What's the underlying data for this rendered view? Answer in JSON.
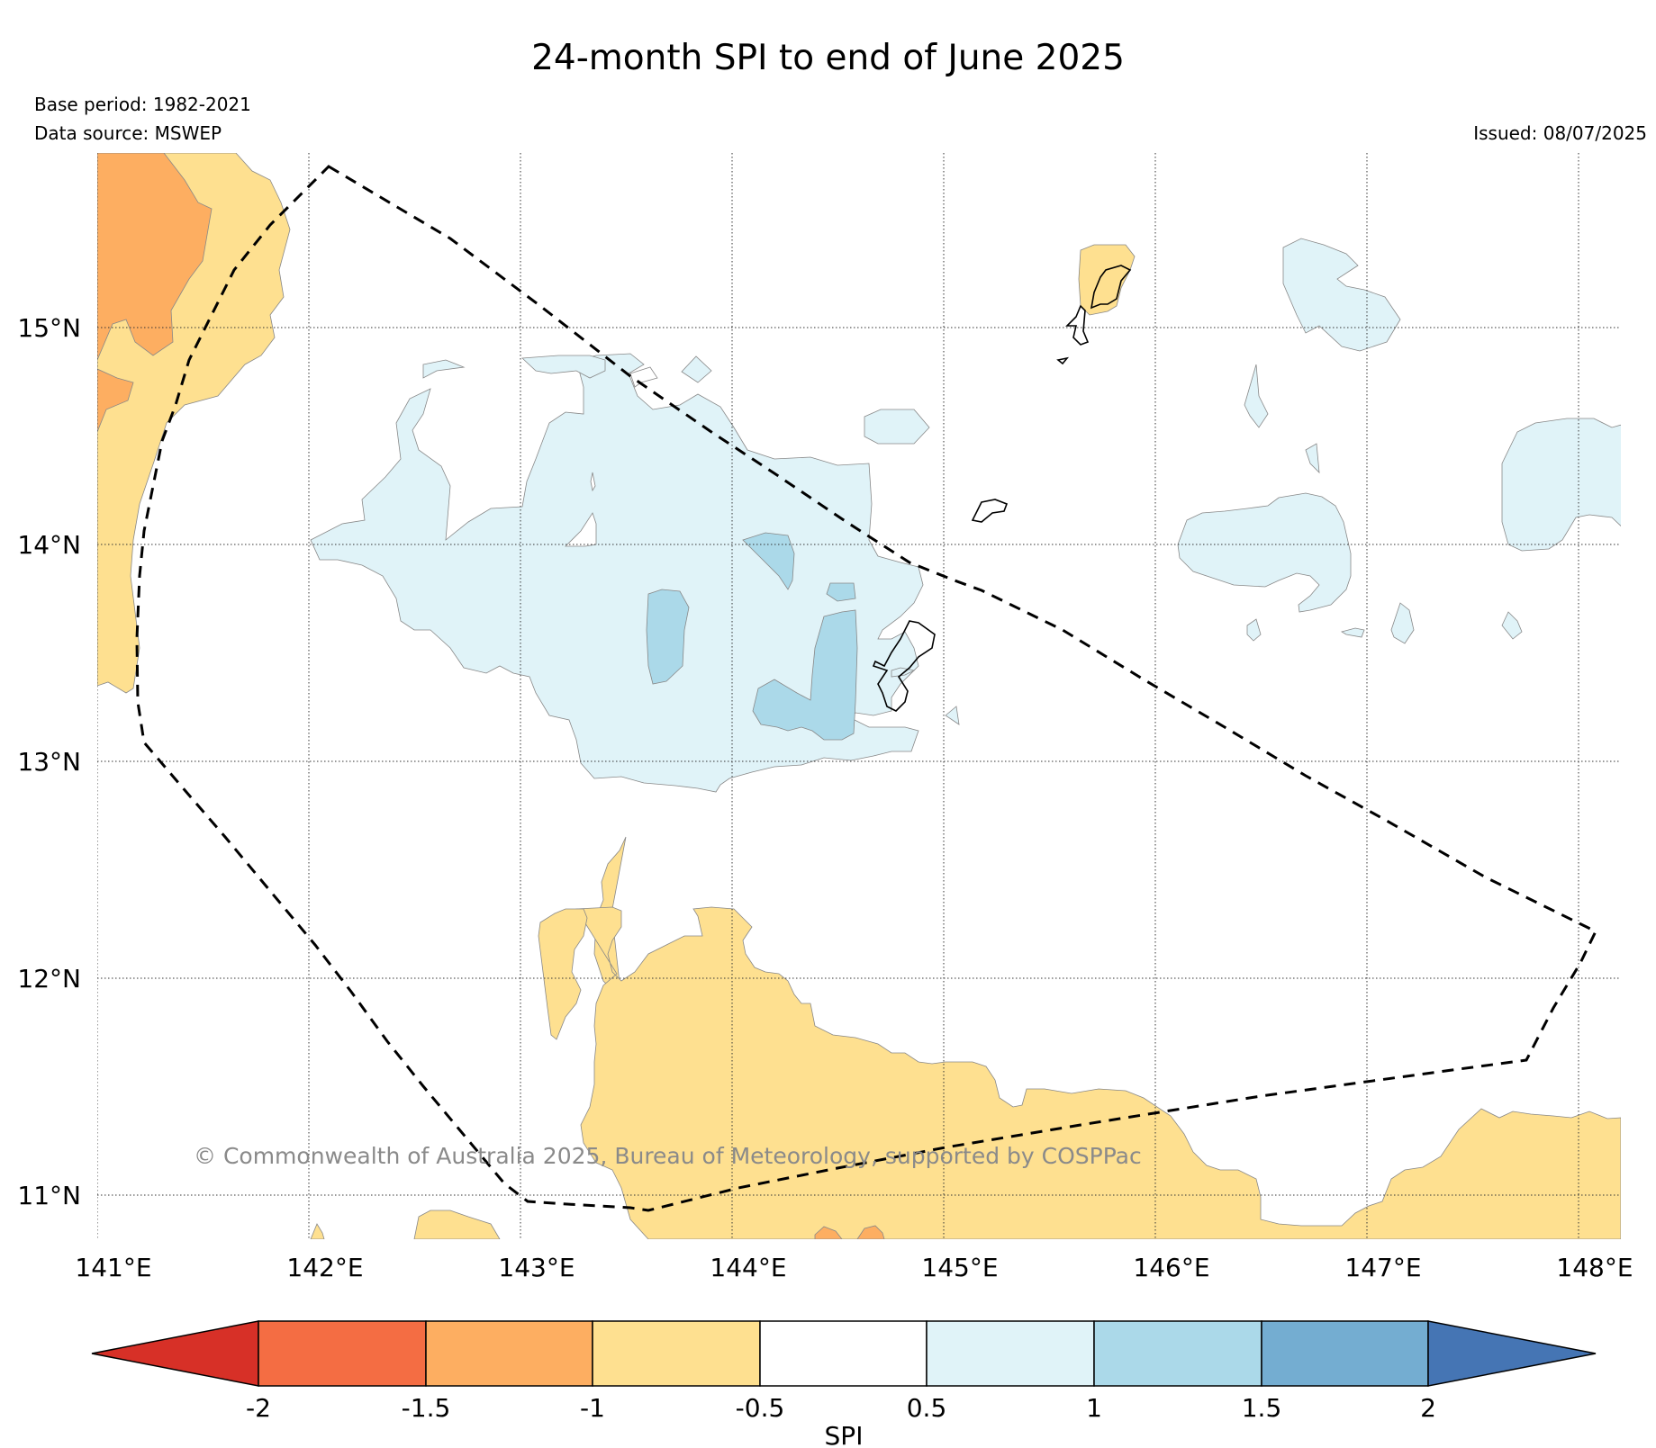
{
  "title": "24-month SPI to end of June 2025",
  "base_period": "Base period: 1982-2021",
  "data_source": "Data source: MSWEP",
  "issued": "Issued: 08/07/2025",
  "copyright": "© Commonwealth of Australia 2025, Bureau of Meteorology, supported by COSPPac",
  "map": {
    "lon_range": [
      141,
      148.2
    ],
    "lat_range": [
      10.8,
      15.8
    ],
    "lon_ticks": [
      {
        "value": 141,
        "label": "141°E"
      },
      {
        "value": 142,
        "label": "142°E"
      },
      {
        "value": 143,
        "label": "143°E"
      },
      {
        "value": 144,
        "label": "144°E"
      },
      {
        "value": 145,
        "label": "145°E"
      },
      {
        "value": 146,
        "label": "146°E"
      },
      {
        "value": 147,
        "label": "147°E"
      },
      {
        "value": 148,
        "label": "148°E"
      }
    ],
    "lat_ticks": [
      {
        "value": 15,
        "label": "15°N"
      },
      {
        "value": 14,
        "label": "14°N"
      },
      {
        "value": 13,
        "label": "13°N"
      },
      {
        "value": 12,
        "label": "12°N"
      },
      {
        "value": 11,
        "label": "11°N"
      }
    ],
    "gridlines": "dotted",
    "boundary_style": "dashed"
  },
  "colorbar": {
    "label": "SPI",
    "tick_labels": [
      "-2",
      "-1.5",
      "-1",
      "-0.5",
      "0.5",
      "1",
      "1.5",
      "2"
    ],
    "colors": [
      "#d73027",
      "#f46d43",
      "#fdae61",
      "#fee090",
      "#ffffff",
      "#e0f3f8",
      "#abd9e9",
      "#74add1",
      "#4575b4"
    ],
    "extend": "both"
  },
  "colors": {
    "dry_moderate": "#fee090",
    "dry_severe": "#fdae61",
    "wet_moderate": "#e0f3f8",
    "wet_severe": "#abd9e9"
  }
}
